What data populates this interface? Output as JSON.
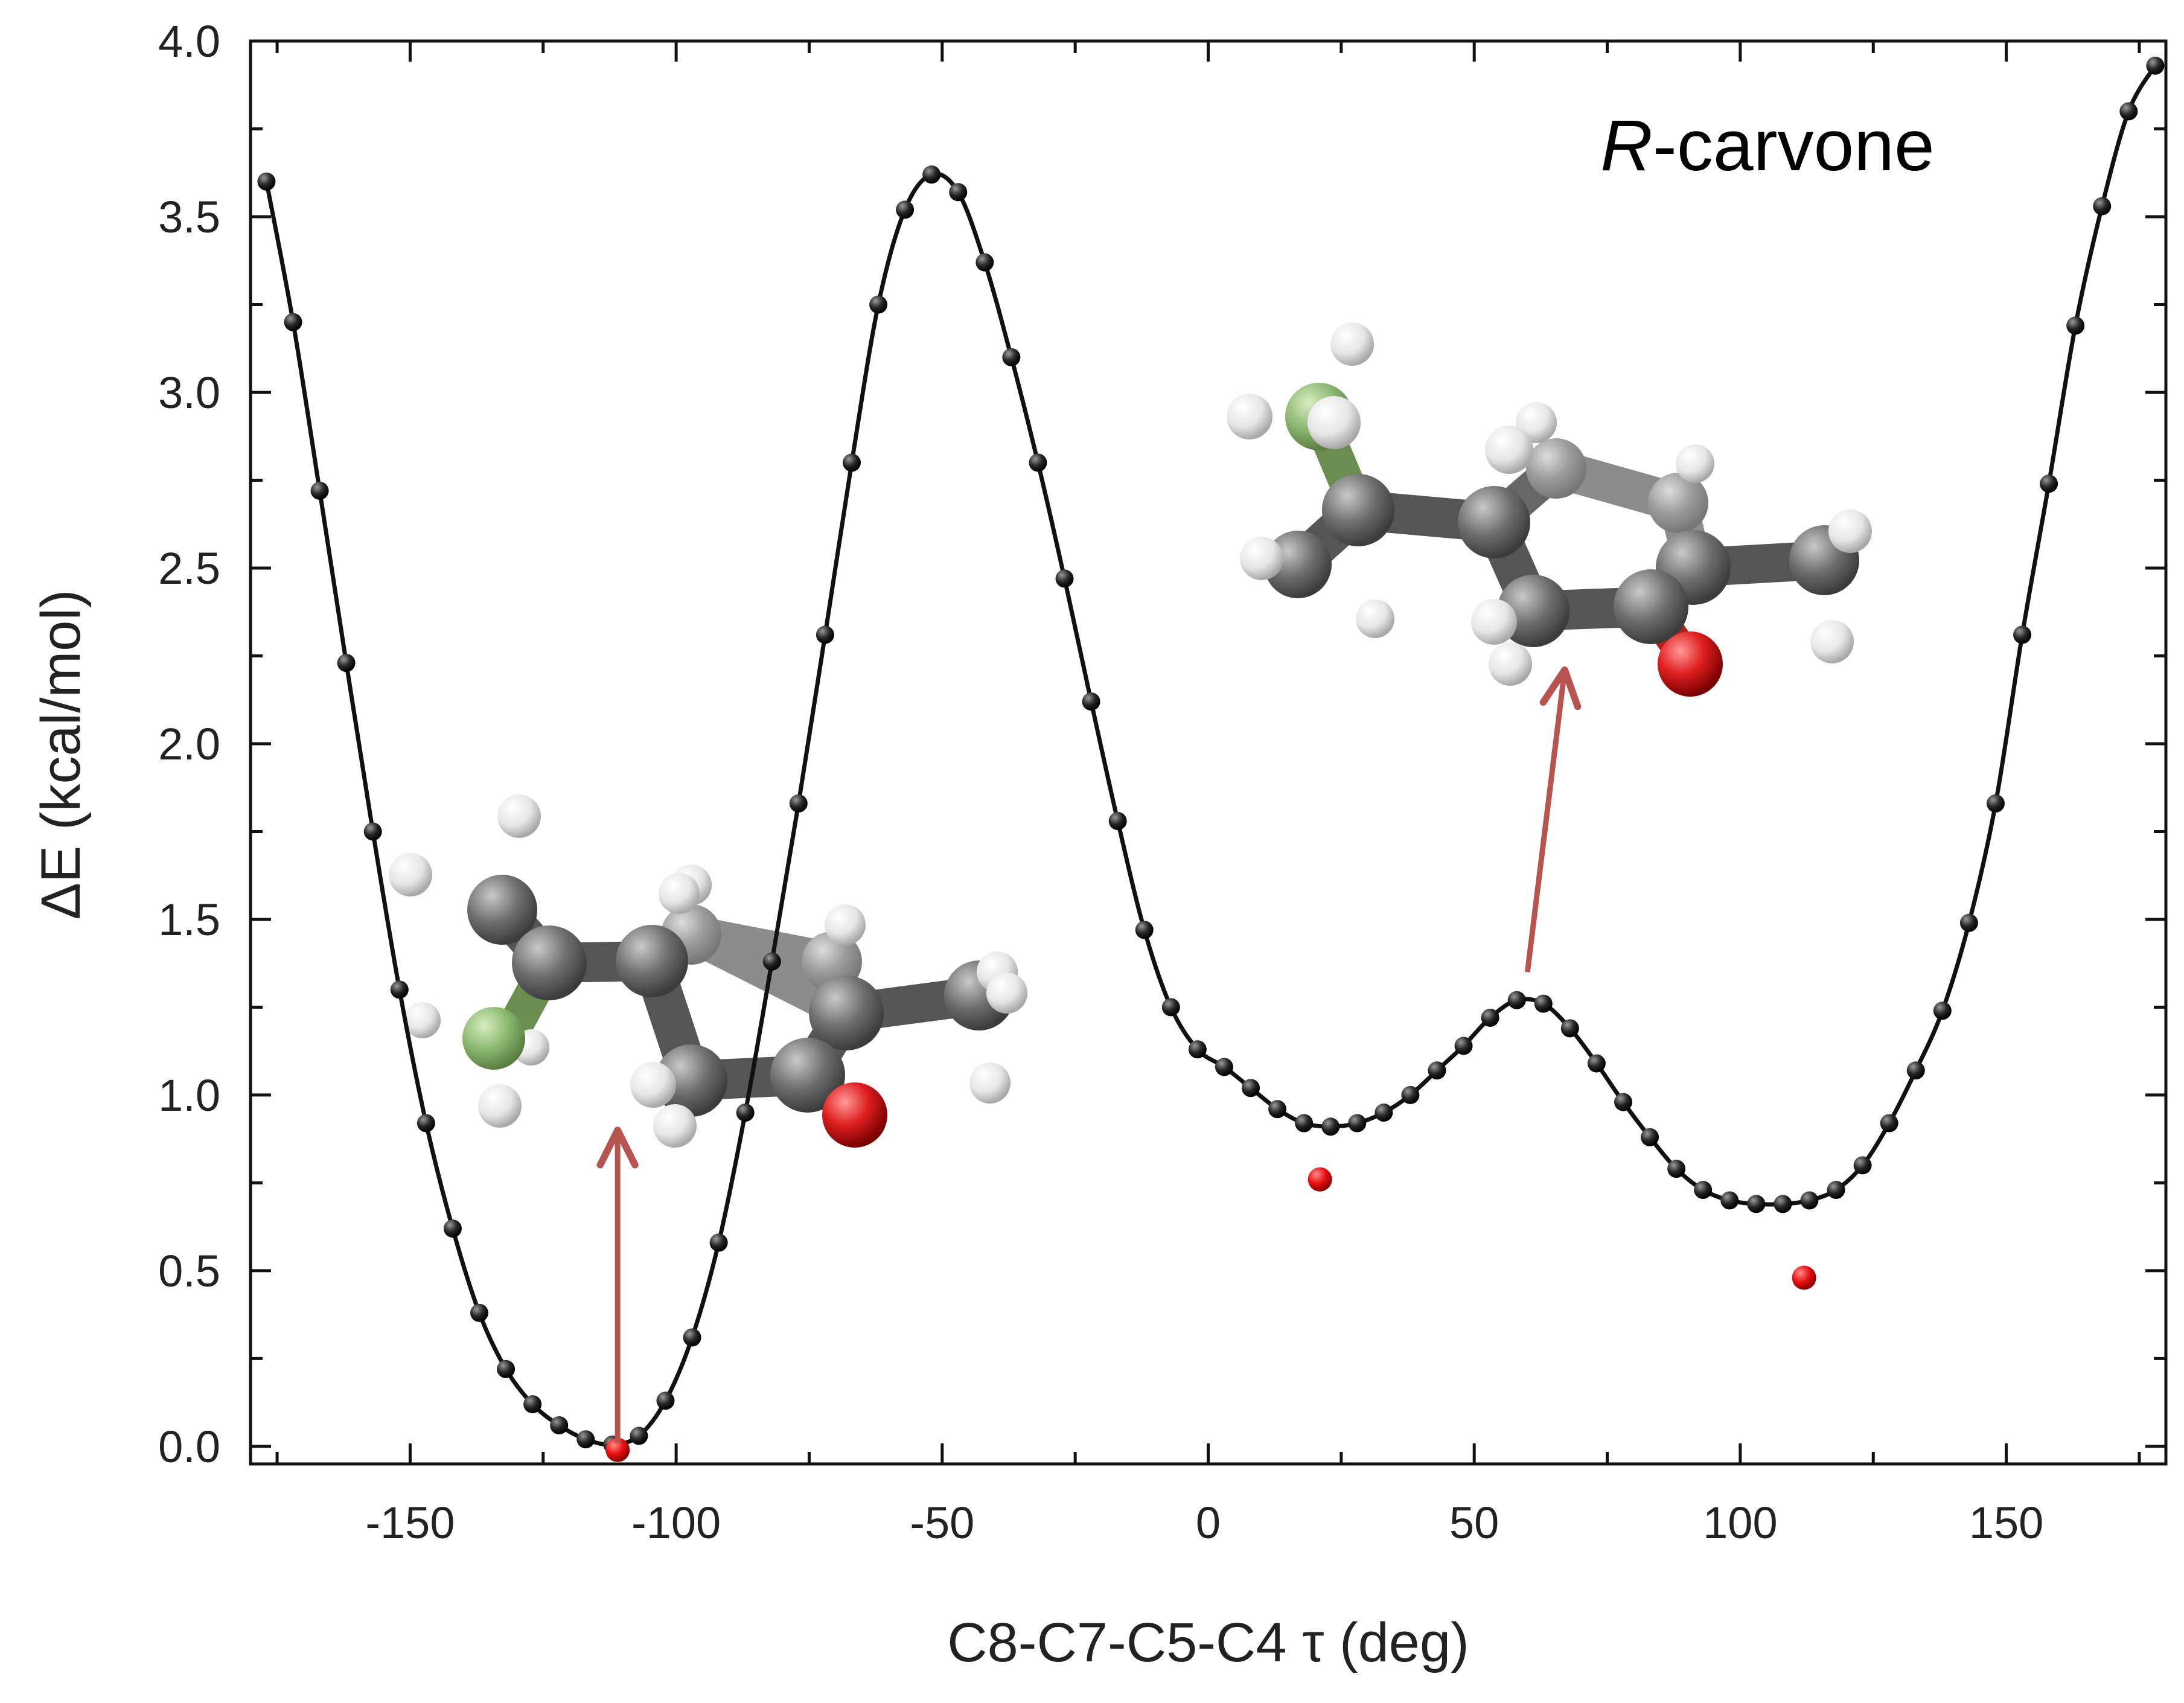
{
  "chart_data": {
    "type": "scatter",
    "xlabel": "C8-C7-C5-C4 τ (deg)",
    "ylabel": "ΔE (kcal/mol)",
    "xlim": [
      -180,
      180
    ],
    "ylim": [
      -0.05,
      4.0
    ],
    "x_ticks": [
      -150,
      -100,
      -50,
      0,
      50,
      100,
      150
    ],
    "x_tick_labels": [
      "-150",
      "-100",
      "-50",
      "0",
      "50",
      "100",
      "150"
    ],
    "y_ticks": [
      0.0,
      0.5,
      1.0,
      1.5,
      2.0,
      2.5,
      3.0,
      3.5,
      4.0
    ],
    "y_tick_labels": [
      "0.0",
      "0.5",
      "1.0",
      "1.5",
      "2.0",
      "2.5",
      "3.0",
      "3.5",
      "4.0"
    ],
    "grid": false,
    "annotation": {
      "italic": "R",
      "rest": "-carvone",
      "position": "top-right"
    },
    "series": [
      {
        "marker": "black-sphere",
        "line": "solid",
        "color": "#111111",
        "x": [
          -177,
          -172,
          -167,
          -162,
          -157,
          -152,
          -147,
          -142,
          -137,
          -132,
          -127,
          -122,
          -117,
          -112,
          -107,
          -102,
          -97,
          -92,
          -87,
          -82,
          -77,
          -72,
          -67,
          -62,
          -57,
          -52,
          -47,
          -42,
          -37,
          -32,
          -27,
          -22,
          -17,
          -12,
          -7,
          -2,
          3,
          8,
          13,
          18,
          23,
          28,
          33,
          38,
          43,
          48,
          53,
          58,
          63,
          68,
          73,
          78,
          83,
          88,
          93,
          98,
          103,
          108,
          113,
          118,
          123,
          128,
          133,
          138,
          143,
          148,
          153,
          158,
          163,
          168,
          173,
          178
        ],
        "y": [
          3.6,
          3.2,
          2.72,
          2.23,
          1.75,
          1.3,
          0.92,
          0.62,
          0.38,
          0.22,
          0.12,
          0.06,
          0.02,
          0.005,
          0.03,
          0.13,
          0.31,
          0.58,
          0.95,
          1.38,
          1.83,
          2.31,
          2.8,
          3.25,
          3.52,
          3.62,
          3.57,
          3.37,
          3.1,
          2.8,
          2.47,
          2.12,
          1.78,
          1.47,
          1.25,
          1.13,
          1.08,
          1.02,
          0.96,
          0.92,
          0.91,
          0.92,
          0.95,
          1.0,
          1.07,
          1.14,
          1.22,
          1.27,
          1.26,
          1.19,
          1.09,
          0.98,
          0.88,
          0.79,
          0.73,
          0.7,
          0.69,
          0.69,
          0.7,
          0.73,
          0.8,
          0.92,
          1.07,
          1.24,
          1.49,
          1.83,
          2.31,
          2.74,
          3.19,
          3.53,
          3.8,
          3.93
        ]
      },
      {
        "marker": "red-sphere",
        "line": "none",
        "color": "#e8121a",
        "x": [
          -111,
          21,
          112
        ],
        "y": [
          -0.01,
          0.76,
          0.48
        ]
      }
    ],
    "arrows": [
      {
        "from": [
          -111,
          0.01
        ],
        "to": [
          -111,
          0.9
        ],
        "color": "#b85450"
      },
      {
        "from": [
          60,
          1.35
        ],
        "to": [
          67,
          2.21
        ],
        "color": "#b85450"
      }
    ]
  },
  "molecules": [
    {
      "name": "conformer-1-model",
      "points_to_x": -111
    },
    {
      "name": "conformer-2-model",
      "points_to_x": 60
    }
  ]
}
